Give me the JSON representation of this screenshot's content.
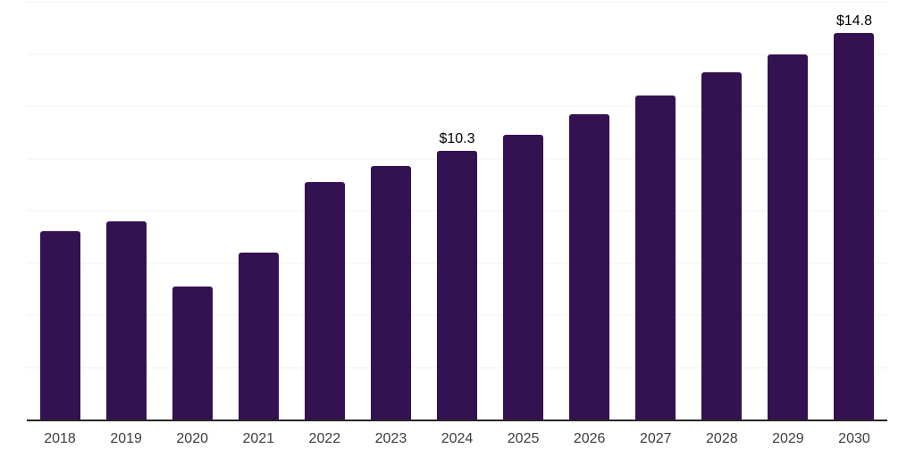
{
  "chart_data": {
    "type": "bar",
    "title": "",
    "xlabel": "",
    "ylabel": "",
    "categories": [
      "2018",
      "2019",
      "2020",
      "2021",
      "2022",
      "2023",
      "2024",
      "2025",
      "2026",
      "2027",
      "2028",
      "2029",
      "2030"
    ],
    "values": [
      7.2,
      7.6,
      5.1,
      6.4,
      9.1,
      9.7,
      10.3,
      10.9,
      11.7,
      12.4,
      13.3,
      14.0,
      14.8
    ],
    "point_labels": [
      "",
      "",
      "",
      "",
      "",
      "",
      "$10.3",
      "",
      "",
      "",
      "",
      "",
      "$14.8"
    ],
    "ylim": [
      0,
      16
    ],
    "grid_step": 2,
    "grid": true,
    "legend": false,
    "y_axis_labels_visible": false,
    "colors": {
      "bar": "#341150",
      "gridline": "#f2f2f2",
      "axis_line": "#262626",
      "value_label": "#000000",
      "tick_label": "#3d3d3d",
      "background": "#ffffff"
    }
  }
}
